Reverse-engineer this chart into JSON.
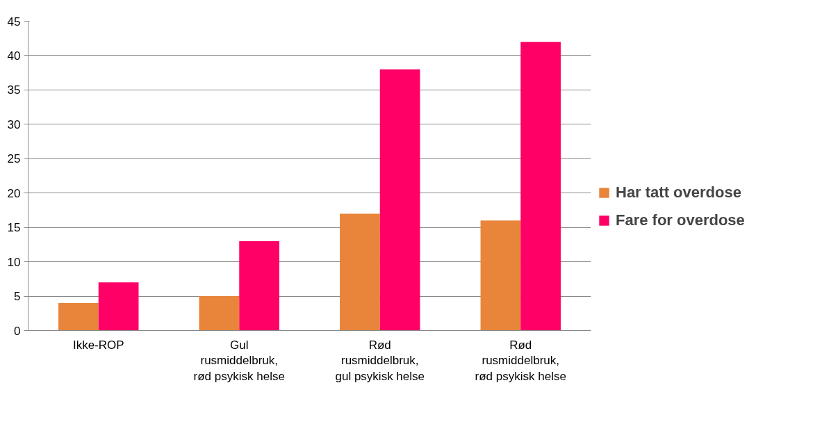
{
  "chart_data": {
    "type": "bar",
    "categories": [
      "Ikke-ROP",
      "Gul rusmiddelbruk, rød psykisk helse",
      "Rød rusmiddelbruk, gul psykisk helse",
      "Rød rusmiddelbruk, rød psykisk helse"
    ],
    "series": [
      {
        "name": "Har tatt overdose",
        "color": "#e8853a",
        "values": [
          4,
          5,
          17,
          16
        ]
      },
      {
        "name": "Fare for overdose",
        "color": "#ff0066",
        "values": [
          7,
          13,
          38,
          42
        ]
      }
    ],
    "ylim": [
      0,
      45
    ],
    "yticks": [
      0,
      5,
      10,
      15,
      20,
      25,
      30,
      35,
      40,
      45
    ],
    "grid": "y",
    "legend": "right"
  }
}
